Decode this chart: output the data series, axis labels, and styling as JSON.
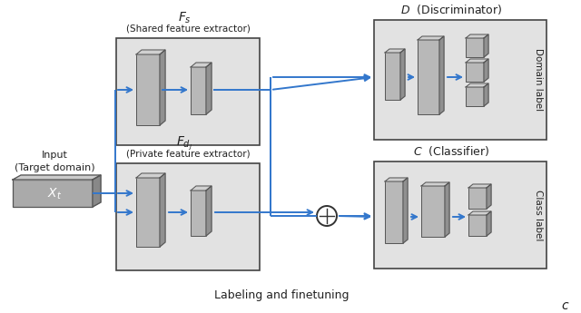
{
  "bg_color": "#ffffff",
  "box_bg": "#e2e2e2",
  "box_border": "#444444",
  "block_face": "#b8b8b8",
  "block_side": "#909090",
  "block_top": "#d0d0d0",
  "input_face": "#aaaaaa",
  "input_side": "#808080",
  "input_top": "#c8c8c8",
  "arrow_color": "#3377cc",
  "text_color": "#222222",
  "label_bottom": "Labeling and finetuning",
  "fs_label": "$F_s$",
  "fs_sub": "(Shared feature extractor)",
  "fdj_label": "$F_{d_J}$",
  "fdj_sub": "(Private feature extractor)",
  "D_label": "$D$  (Discriminator)",
  "C_label": "$C$  (Classifier)",
  "domain_label": "Domain label",
  "class_label": "Class label",
  "input_label": "Input\n(Target domain)",
  "xt_label": "$X_t$",
  "c_annot": "c"
}
